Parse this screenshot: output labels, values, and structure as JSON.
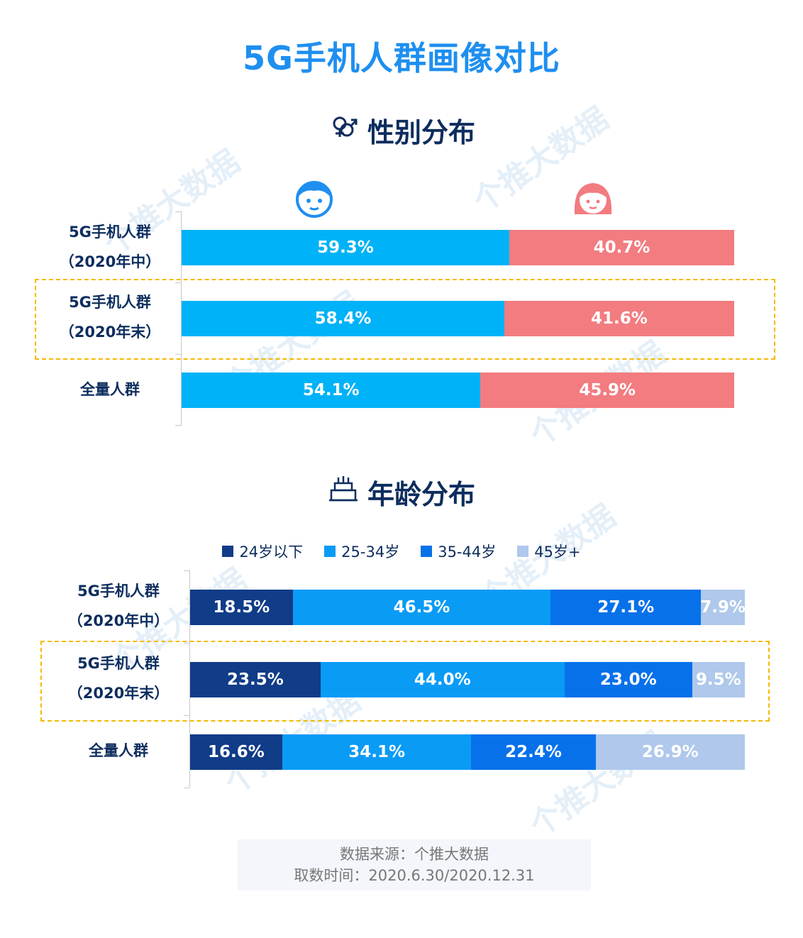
{
  "title": "5G手机人群画像对比",
  "watermark_text": "个推大数据",
  "gender_section": {
    "title": "性别分布",
    "icon": "gender-icon",
    "male_icon": "boy-face-icon",
    "female_icon": "girl-face-icon"
  },
  "age_section": {
    "title": "年龄分布",
    "icon": "birthday-cake-icon",
    "legend": [
      "24岁以下",
      "25-34岁",
      "35-44岁",
      "45岁+"
    ]
  },
  "source": {
    "line1": "数据来源：个推大数据",
    "line2": "取数时间：2020.6.30/2020.12.31"
  },
  "chart_data": [
    {
      "type": "bar",
      "stacked": true,
      "orientation": "horizontal",
      "title": "性别分布",
      "categories": [
        [
          "5G手机人群",
          "（2020年中）"
        ],
        [
          "5G手机人群",
          "（2020年末）"
        ],
        [
          "全量人群"
        ]
      ],
      "series": [
        {
          "values": [
            59.3,
            58.4,
            54.1
          ],
          "labels": [
            "59.3%",
            "58.4%",
            "54.1%"
          ],
          "color": "#00B2F7"
        },
        {
          "values": [
            40.7,
            41.6,
            45.9
          ],
          "labels": [
            "40.7%",
            "41.6%",
            "45.9%"
          ],
          "color": "#F27C80"
        }
      ],
      "highlighted_category": 1
    },
    {
      "type": "bar",
      "stacked": true,
      "orientation": "horizontal",
      "title": "年龄分布",
      "categories": [
        [
          "5G手机人群",
          "（2020年中）"
        ],
        [
          "5G手机人群",
          "（2020年末）"
        ],
        [
          "全量人群"
        ]
      ],
      "series": [
        {
          "name": "24岁以下",
          "values": [
            18.5,
            23.5,
            16.6
          ],
          "labels": [
            "18.5%",
            "23.5%",
            "16.6%"
          ],
          "color": "#103C88"
        },
        {
          "name": "25-34岁",
          "values": [
            46.5,
            44.0,
            34.1
          ],
          "labels": [
            "46.5%",
            "44.0%",
            "34.1%"
          ],
          "color": "#0A9BF5"
        },
        {
          "name": "35-44岁",
          "values": [
            27.1,
            23.0,
            22.4
          ],
          "labels": [
            "27.1%",
            "23.0%",
            "22.4%"
          ],
          "color": "#0771EA"
        },
        {
          "name": "45岁+",
          "values": [
            7.9,
            9.5,
            26.9
          ],
          "labels": [
            "7.9%",
            "9.5%",
            "26.9%"
          ],
          "color": "#AFC8EB"
        }
      ],
      "highlighted_category": 1
    }
  ]
}
